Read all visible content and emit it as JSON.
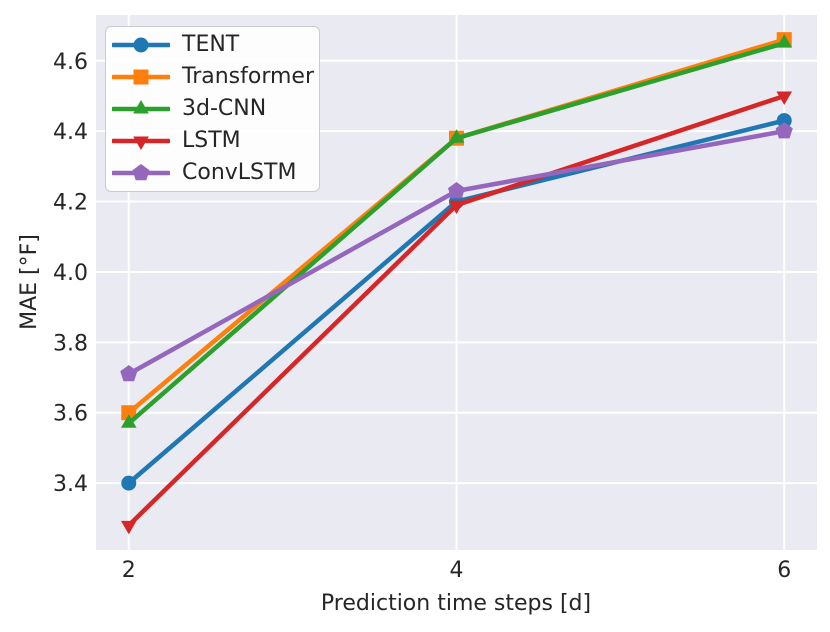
{
  "chart_data": {
    "type": "line",
    "xlabel": "Prediction time steps [d]",
    "ylabel": "MAE [°F]",
    "x": [
      2,
      4,
      6
    ],
    "series": [
      {
        "name": "TENT",
        "values": [
          3.4,
          4.2,
          4.43
        ],
        "color": "#1f77b4",
        "marker": "circle"
      },
      {
        "name": "Transformer",
        "values": [
          3.6,
          4.38,
          4.66
        ],
        "color": "#ff7f0e",
        "marker": "square"
      },
      {
        "name": "3d-CNN",
        "values": [
          3.57,
          4.38,
          4.65
        ],
        "color": "#2ca02c",
        "marker": "triangle-up"
      },
      {
        "name": "LSTM",
        "values": [
          3.28,
          4.19,
          4.5
        ],
        "color": "#d62728",
        "marker": "triangle-down"
      },
      {
        "name": "ConvLSTM",
        "values": [
          3.71,
          4.23,
          4.4
        ],
        "color": "#9467bd",
        "marker": "pentagon"
      }
    ],
    "xticks": [
      2,
      4,
      6
    ],
    "xtick_labels": [
      "2",
      "4",
      "6"
    ],
    "yticks": [
      3.4,
      3.6,
      3.8,
      4.0,
      4.2,
      4.4,
      4.6
    ],
    "ytick_labels": [
      "3.4",
      "3.6",
      "3.8",
      "4.0",
      "4.2",
      "4.4",
      "4.6"
    ],
    "xlim": [
      1.8,
      6.2
    ],
    "ylim": [
      3.21,
      4.73
    ],
    "grid": true,
    "legend_position": "upper left",
    "colors": {
      "plot_background": "#eaeaf2",
      "grid": "#ffffff",
      "text": "#262626",
      "legend_border": "#cccccc"
    }
  }
}
